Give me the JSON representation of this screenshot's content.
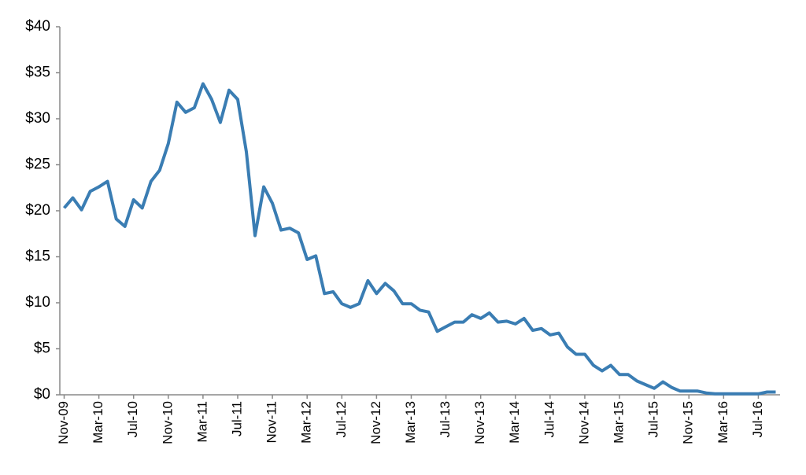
{
  "chart_data": {
    "type": "line",
    "categories": [
      "Nov-09",
      null,
      null,
      null,
      "Mar-10",
      null,
      null,
      null,
      "Jul-10",
      null,
      null,
      null,
      "Nov-10",
      null,
      null,
      null,
      "Mar-11",
      null,
      null,
      null,
      "Jul-11",
      null,
      null,
      null,
      "Nov-11",
      null,
      null,
      null,
      "Mar-12",
      null,
      null,
      null,
      "Jul-12",
      null,
      null,
      null,
      "Nov-12",
      null,
      null,
      null,
      "Mar-13",
      null,
      null,
      null,
      "Jul-13",
      null,
      null,
      null,
      "Nov-13",
      null,
      null,
      null,
      "Mar-14",
      null,
      null,
      null,
      "Jul-14",
      null,
      null,
      null,
      "Nov-14",
      null,
      null,
      null,
      "Mar-15",
      null,
      null,
      null,
      "Jul-15",
      null,
      null,
      null,
      "Nov-15",
      null,
      null,
      null,
      "Mar-16",
      null,
      null,
      null,
      "Jul-16",
      null,
      null
    ],
    "series": [
      {
        "color": "#3a7db3",
        "values": [
          20.3,
          21.4,
          20.1,
          22.1,
          22.6,
          23.2,
          19.1,
          18.3,
          21.2,
          20.3,
          23.2,
          24.4,
          27.3,
          31.8,
          30.7,
          31.2,
          33.8,
          32.1,
          29.6,
          33.1,
          32.1,
          26.4,
          17.3,
          22.6,
          20.8,
          17.9,
          18.1,
          17.6,
          14.7,
          15.1,
          11.0,
          11.2,
          9.9,
          9.5,
          9.9,
          12.4,
          11.0,
          12.1,
          11.3,
          9.9,
          9.9,
          9.2,
          9.0,
          6.9,
          7.4,
          7.9,
          7.9,
          8.7,
          8.3,
          8.9,
          7.9,
          8.0,
          7.7,
          8.3,
          7.0,
          7.2,
          6.5,
          6.7,
          5.2,
          4.4,
          4.4,
          3.2,
          2.6,
          3.2,
          2.2,
          2.2,
          1.5,
          1.1,
          0.7,
          1.4,
          0.8,
          0.4,
          0.4,
          0.4,
          0.2,
          0.1,
          0.1,
          0.1,
          0.1,
          0.1,
          0.1,
          0.3,
          0.3
        ]
      }
    ],
    "ylim": [
      0,
      40
    ],
    "yticks": [
      {
        "value": 0,
        "label": "$0"
      },
      {
        "value": 5,
        "label": "$5"
      },
      {
        "value": 10,
        "label": "$10"
      },
      {
        "value": 15,
        "label": "$15"
      },
      {
        "value": 20,
        "label": "$20"
      },
      {
        "value": 25,
        "label": "$25"
      },
      {
        "value": 30,
        "label": "$30"
      },
      {
        "value": 35,
        "label": "$35"
      },
      {
        "value": 40,
        "label": "$40"
      }
    ],
    "grid": false
  }
}
